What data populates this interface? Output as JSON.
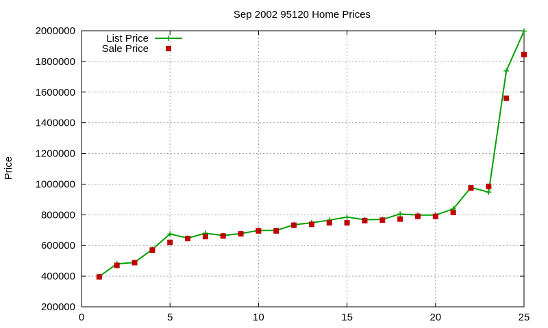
{
  "chart_data": {
    "type": "line",
    "title": "Sep 2002 95120 Home Prices",
    "xlabel": "",
    "ylabel": "Price",
    "xlim": [
      0,
      25
    ],
    "ylim": [
      200000,
      2000000
    ],
    "x_ticks": [
      0,
      5,
      10,
      15,
      20,
      25
    ],
    "y_ticks": [
      200000,
      400000,
      600000,
      800000,
      1000000,
      1200000,
      1400000,
      1600000,
      1800000,
      2000000
    ],
    "grid": true,
    "legend_position": "top-left",
    "x": [
      1,
      2,
      3,
      4,
      5,
      6,
      7,
      8,
      9,
      10,
      11,
      12,
      13,
      14,
      15,
      16,
      17,
      18,
      19,
      20,
      21,
      22,
      23,
      24,
      25
    ],
    "series": [
      {
        "name": "List Price",
        "style": "line-with-plus-markers",
        "color": "#00a000",
        "values": [
          398000,
          480000,
          489000,
          575000,
          675000,
          648000,
          680000,
          665000,
          678000,
          698000,
          698000,
          735000,
          748000,
          765000,
          785000,
          768000,
          770000,
          805000,
          798000,
          798000,
          838000,
          978000,
          948000,
          1738000,
          1998000
        ]
      },
      {
        "name": "Sale Price",
        "style": "square-markers",
        "color": "#c00000",
        "values": [
          395000,
          470000,
          488000,
          570000,
          620000,
          645000,
          658000,
          662000,
          676000,
          695000,
          695000,
          732000,
          738000,
          748000,
          748000,
          762000,
          765000,
          772000,
          790000,
          790000,
          815000,
          975000,
          985000,
          1560000,
          1845000
        ]
      }
    ]
  }
}
